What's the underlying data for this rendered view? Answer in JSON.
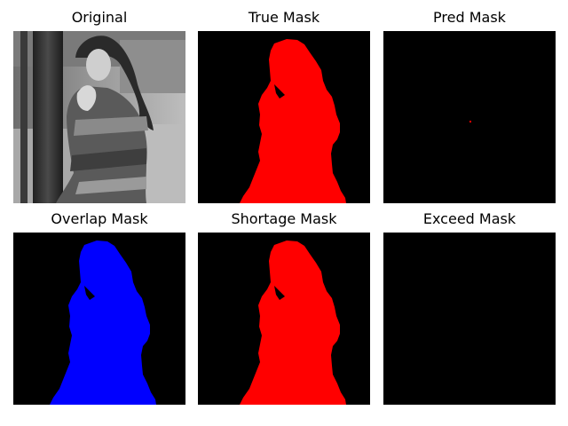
{
  "figure": {
    "panels": [
      {
        "title": "Original",
        "image": "grayscale-photo-of-woman-leaning-on-pole"
      },
      {
        "title": "True Mask",
        "image": "segmentation-mask",
        "fill_color": "#ff0000",
        "background_color": "#000000"
      },
      {
        "title": "Pred Mask",
        "image": "segmentation-mask",
        "fill_color": "#ff0000",
        "background_color": "#000000"
      },
      {
        "title": "Overlap Mask",
        "image": "segmentation-mask",
        "fill_color": "#0000ff",
        "background_color": "#000000"
      },
      {
        "title": "Shortage Mask",
        "image": "segmentation-mask",
        "fill_color": "#ff0000",
        "background_color": "#000000"
      },
      {
        "title": "Exceed Mask",
        "image": "segmentation-mask",
        "fill_color": "#ff0000",
        "background_color": "#000000"
      }
    ]
  }
}
